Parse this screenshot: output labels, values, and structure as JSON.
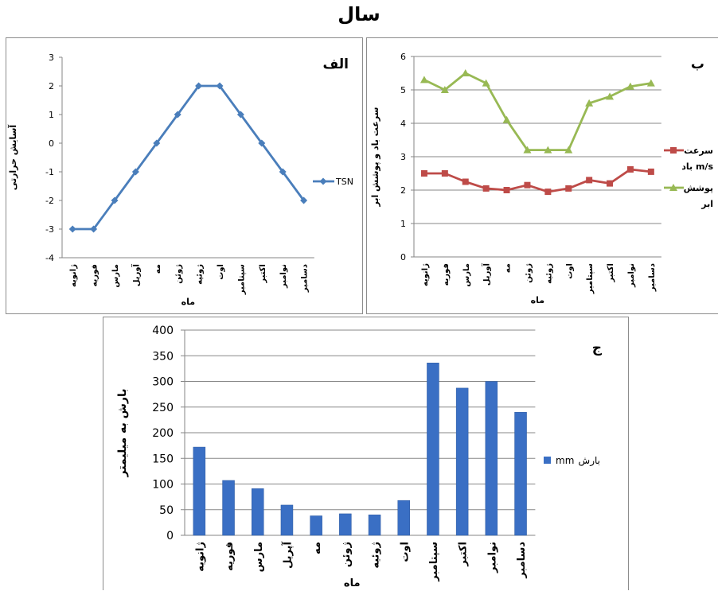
{
  "title": "سال",
  "chart_data": [
    {
      "panel_label": "الف",
      "type": "line",
      "categories": [
        "ژانویه",
        "فوریه",
        "مارس",
        "آوریل",
        "مه",
        "ژوئن",
        "ژوئیه",
        "اوت",
        "سپتامبر",
        "اکتبر",
        "نوامبر",
        "دسامبر"
      ],
      "series": [
        {
          "name": "TSN",
          "values": [
            -3,
            -3,
            -2,
            -1,
            0,
            1,
            2,
            2,
            1,
            0,
            -1,
            -2
          ],
          "color": "#4a7ebb",
          "marker": "diamond"
        }
      ],
      "xlabel": "ماه",
      "ylabel": "آسایش حرارتی",
      "ylim": [
        -4,
        3
      ],
      "yticks": [
        3,
        2,
        1,
        0,
        -1,
        -2,
        -3,
        -4
      ],
      "ytick_labels": [
        "3",
        "2",
        "1",
        "0",
        "-1",
        "-2",
        "-3",
        "-4"
      ],
      "grid": false,
      "legend_position": "right"
    },
    {
      "panel_label": "ب",
      "type": "line",
      "categories": [
        "ژانویه",
        "فوریه",
        "مارس",
        "آوریل",
        "مه",
        "ژوئن",
        "ژوئیه",
        "اوت",
        "سپتامبر",
        "اکتبر",
        "نوامبر",
        "دسامبر"
      ],
      "series": [
        {
          "name": "سرعت باد m/s",
          "name_lines": [
            "سرعت",
            "باد m/s"
          ],
          "values": [
            2.5,
            2.5,
            2.25,
            2.05,
            2.0,
            2.15,
            1.95,
            2.05,
            2.3,
            2.2,
            2.62,
            2.55
          ],
          "color": "#be4b48",
          "marker": "square"
        },
        {
          "name": "پوشش ابر",
          "name_lines": [
            "پوشش",
            "ابر"
          ],
          "values": [
            5.3,
            5.0,
            5.5,
            5.2,
            4.1,
            3.2,
            3.2,
            3.2,
            4.6,
            4.8,
            5.1,
            5.2
          ],
          "color": "#98b954",
          "marker": "triangle"
        }
      ],
      "xlabel": "ماه",
      "ylabel": "سرعت باد و پوشش ابر",
      "ylim": [
        0,
        6
      ],
      "yticks": [
        0,
        1,
        2,
        3,
        4,
        5,
        6
      ],
      "grid": true,
      "legend_position": "right"
    },
    {
      "panel_label": "ج",
      "type": "bar",
      "categories": [
        "ژانویه",
        "فوریه",
        "مارس",
        "آپریل",
        "مه",
        "ژوئن",
        "ژوئیه",
        "اوت",
        "سپتامبر",
        "اکتبر",
        "نوامبر",
        "دسامبر"
      ],
      "series": [
        {
          "name": "بارش mm",
          "legend_text": "بارش",
          "legend_unit": "mm",
          "values": [
            172,
            107,
            91,
            59,
            38,
            42,
            40,
            68,
            336,
            287,
            300,
            240
          ],
          "color": "#3a6fc4"
        }
      ],
      "xlabel": "ماه",
      "ylabel": "بارش به میلیمتر",
      "ylim": [
        0,
        400
      ],
      "yticks": [
        0,
        50,
        100,
        150,
        200,
        250,
        300,
        350,
        400
      ],
      "grid": true,
      "legend_position": "right"
    }
  ]
}
